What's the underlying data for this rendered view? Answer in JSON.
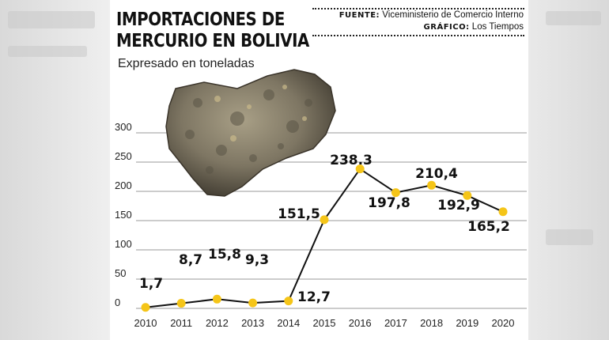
{
  "header": {
    "title_line1": "IMPORTACIONES DE",
    "title_line2": "MERCURIO EN BOLIVIA",
    "source_label": "FUENTE:",
    "source_value": "Viceministerio de Comercio Interno",
    "graphic_label": "GRÁFICO:",
    "graphic_value": "Los Tiempos",
    "subtitle": "Expresado en toneladas"
  },
  "colors": {
    "line": "#111111",
    "point": "#f5c518",
    "grid": "#9a9a9a"
  },
  "chart_data": {
    "type": "line",
    "title": "IMPORTACIONES DE MERCURIO EN BOLIVIA",
    "subtitle": "Expresado en toneladas",
    "x": [
      "2010",
      "2011",
      "2012",
      "2013",
      "2014",
      "2015",
      "2016",
      "2017",
      "2018",
      "2019",
      "2020"
    ],
    "series": [
      {
        "values": [
          1.7,
          8.7,
          15.8,
          9.3,
          12.7,
          151.5,
          238.3,
          197.8,
          210.4,
          192.9,
          165.2
        ]
      }
    ],
    "data_labels": [
      "1,7",
      "8,7",
      "15,8",
      "9,3",
      "12,7",
      "151,5",
      "238.3",
      "197,8",
      "210,4",
      "192,9",
      "165,2"
    ],
    "yticks": [
      0,
      50,
      100,
      150,
      200,
      250,
      300
    ],
    "ylim": [
      0,
      300
    ],
    "grid": true,
    "legend": "none"
  }
}
